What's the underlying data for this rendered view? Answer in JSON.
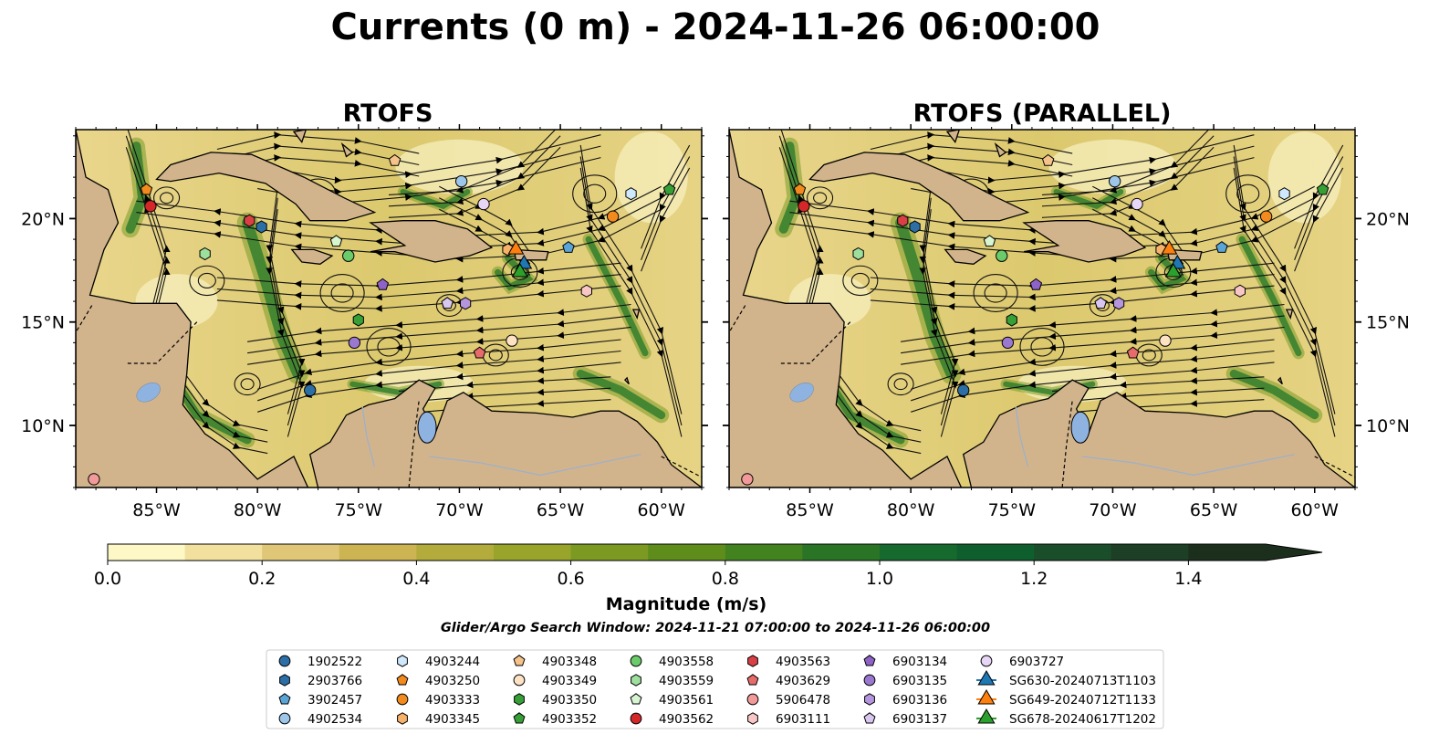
{
  "title": "Currents (0 m) - 2024-11-26 06:00:00",
  "colors": {
    "land": "#d2b48c",
    "lake": "#8fb3e0",
    "river": "#9fb0c8"
  },
  "colorbar": {
    "label": "Magnitude (m/s)",
    "ticks": [
      "0.0",
      "0.2",
      "0.4",
      "0.6",
      "0.8",
      "1.0",
      "1.2",
      "1.4"
    ],
    "vmin": 0.0,
    "vmax": 1.5,
    "extend": "max",
    "colors": [
      "#fdf8c6",
      "#f2e19e",
      "#dfc777",
      "#cdb452",
      "#b3ab3c",
      "#98a52a",
      "#7c9a22",
      "#5e8d1c",
      "#43831f",
      "#2a7426",
      "#166a2e",
      "#0f5e2d",
      "#1a4e2a",
      "#1d3f25",
      "#1c2f1d"
    ]
  },
  "window_text": "Glider/Argo Search Window: 2024-11-21 07:00:00 to 2024-11-26 06:00:00",
  "map": {
    "lon_range": [
      -89,
      -58
    ],
    "lat_range": [
      7,
      24.3
    ],
    "x_ticks": [
      "85°W",
      "80°W",
      "75°W",
      "70°W",
      "65°W",
      "60°W"
    ],
    "y_ticks": [
      "20°N",
      "15°N",
      "10°N"
    ],
    "panels": [
      {
        "id": "rtofs",
        "label": "RTOFS"
      },
      {
        "id": "rtofs-parallel",
        "label": "RTOFS (PARALLEL)"
      }
    ]
  },
  "markers": [
    {
      "id": "1902522",
      "marker": "circle",
      "color": "#2c6fa6",
      "lon": -77.4,
      "lat": 11.7
    },
    {
      "id": "2903766",
      "marker": "hexagon",
      "color": "#2c6fa6",
      "lon": -79.8,
      "lat": 19.6
    },
    {
      "id": "3902457",
      "marker": "pentagon",
      "color": "#5aa4d6",
      "lon": -64.6,
      "lat": 18.6
    },
    {
      "id": "4902534",
      "marker": "circle",
      "color": "#9dc6e8",
      "lon": -69.9,
      "lat": 21.8
    },
    {
      "id": "4903244",
      "marker": "hexagon",
      "color": "#cfe8fb",
      "lon": -61.5,
      "lat": 21.2
    },
    {
      "id": "4903250",
      "marker": "pentagon",
      "color": "#f28a1e",
      "lon": -85.5,
      "lat": 21.4
    },
    {
      "id": "4903333",
      "marker": "circle",
      "color": "#f28a1e",
      "lon": -62.4,
      "lat": 20.1
    },
    {
      "id": "4903345",
      "marker": "hexagon",
      "color": "#f7b26a",
      "lon": -67.6,
      "lat": 18.5
    },
    {
      "id": "4903348",
      "marker": "pentagon",
      "color": "#f5c28a",
      "lon": -73.2,
      "lat": 22.8
    },
    {
      "id": "4903349",
      "marker": "circle",
      "color": "#fde2c4",
      "lon": -67.4,
      "lat": 14.1
    },
    {
      "id": "4903350",
      "marker": "hexagon",
      "color": "#36a036",
      "lon": -75.0,
      "lat": 15.1
    },
    {
      "id": "4903352",
      "marker": "pentagon",
      "color": "#36a036",
      "lon": -59.6,
      "lat": 21.4
    },
    {
      "id": "4903558",
      "marker": "circle",
      "color": "#6acb6a",
      "lon": -75.5,
      "lat": 18.2
    },
    {
      "id": "4903559",
      "marker": "hexagon",
      "color": "#9ddf9d",
      "lon": -82.6,
      "lat": 18.3
    },
    {
      "id": "4903561",
      "marker": "pentagon",
      "color": "#d6f5d0",
      "lon": -76.1,
      "lat": 18.9
    },
    {
      "id": "4903562",
      "marker": "circle",
      "color": "#d62728",
      "lon": -85.3,
      "lat": 20.6
    },
    {
      "id": "4903563",
      "marker": "hexagon",
      "color": "#d94045",
      "lon": -80.4,
      "lat": 19.9
    },
    {
      "id": "4903629",
      "marker": "pentagon",
      "color": "#e86b6b",
      "lon": -69.0,
      "lat": 13.5
    },
    {
      "id": "5906478",
      "marker": "circle",
      "color": "#f29a9a",
      "lon": -88.1,
      "lat": 7.4
    },
    {
      "id": "6903111",
      "marker": "hexagon",
      "color": "#f9c6c6",
      "lon": -63.7,
      "lat": 16.5
    },
    {
      "id": "6903134",
      "marker": "pentagon",
      "color": "#8e62c7",
      "lon": -73.8,
      "lat": 16.8
    },
    {
      "id": "6903135",
      "marker": "circle",
      "color": "#9a78d0",
      "lon": -75.2,
      "lat": 14.0
    },
    {
      "id": "6903136",
      "marker": "hexagon",
      "color": "#b596de",
      "lon": -69.7,
      "lat": 15.9
    },
    {
      "id": "6903137",
      "marker": "pentagon",
      "color": "#d9c7f2",
      "lon": -70.6,
      "lat": 15.9
    },
    {
      "id": "6903727",
      "marker": "circle",
      "color": "#e8d6f7",
      "lon": -68.8,
      "lat": 20.7
    },
    {
      "id": "SG630-20240713T1103",
      "marker": "triangle",
      "color": "#1f77b4",
      "lon": -66.8,
      "lat": 17.8
    },
    {
      "id": "SG649-20240712T1133",
      "marker": "triangle",
      "color": "#ff7f0e",
      "lon": -67.2,
      "lat": 18.5
    },
    {
      "id": "SG678-20240617T1202",
      "marker": "triangle",
      "color": "#2ca02c",
      "lon": -67.0,
      "lat": 17.4
    }
  ]
}
